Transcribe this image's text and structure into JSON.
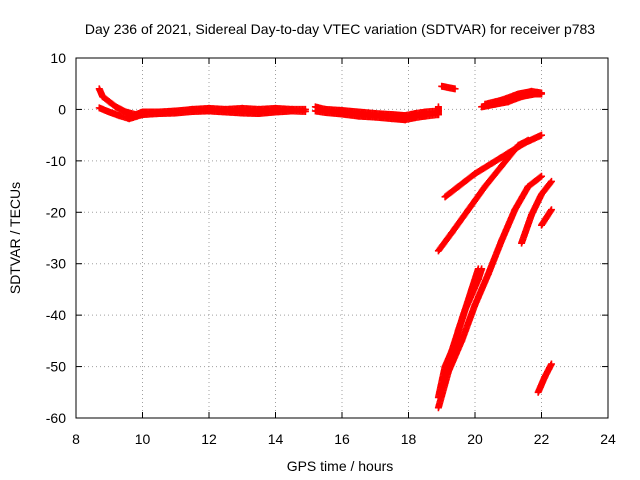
{
  "chart_data": {
    "type": "scatter",
    "title": "Day 236 of 2021, Sidereal Day-to-day VTEC variation (SDTVAR) for receiver p783",
    "xlabel": "GPS time / hours",
    "ylabel": "SDTVAR / TECUs",
    "xlim": [
      8,
      24
    ],
    "ylim": [
      -60,
      10
    ],
    "xticks": [
      8,
      10,
      12,
      14,
      16,
      18,
      20,
      22,
      24
    ],
    "yticks": [
      -60,
      -50,
      -40,
      -30,
      -20,
      -10,
      0,
      10
    ],
    "grid": true,
    "legend": "none",
    "marker": "plus",
    "color": "#ff0000",
    "series": [
      {
        "tracks": [
          [
            [
              8.7,
              4.0
            ],
            [
              8.8,
              2.5
            ],
            [
              9.0,
              1.5
            ],
            [
              9.2,
              0.5
            ],
            [
              9.5,
              -0.5
            ],
            [
              9.8,
              -1.0
            ],
            [
              10.0,
              -0.5
            ],
            [
              10.5,
              -0.5
            ],
            [
              11.0,
              -0.3
            ],
            [
              11.5,
              0.0
            ],
            [
              12.0,
              0.2
            ],
            [
              12.5,
              0.0
            ],
            [
              13.0,
              0.2
            ],
            [
              13.5,
              0.0
            ],
            [
              14.0,
              0.2
            ],
            [
              14.5,
              0.0
            ],
            [
              14.9,
              0.0
            ]
          ],
          [
            [
              8.7,
              0.3
            ],
            [
              9.0,
              -0.5
            ],
            [
              9.3,
              -1.2
            ],
            [
              9.6,
              -1.8
            ],
            [
              10.0,
              -1.0
            ],
            [
              10.5,
              -0.8
            ],
            [
              11.0,
              -0.7
            ],
            [
              11.5,
              -0.4
            ],
            [
              12.0,
              -0.3
            ],
            [
              12.5,
              -0.5
            ],
            [
              13.0,
              -0.7
            ],
            [
              13.5,
              -0.8
            ],
            [
              14.0,
              -0.5
            ],
            [
              14.5,
              -0.3
            ],
            [
              14.9,
              -0.4
            ]
          ],
          [
            [
              15.2,
              0.5
            ],
            [
              15.5,
              0.0
            ],
            [
              16.0,
              -0.2
            ],
            [
              16.5,
              -0.5
            ],
            [
              17.0,
              -0.8
            ],
            [
              17.5,
              -1.0
            ],
            [
              17.9,
              -1.2
            ],
            [
              18.2,
              -0.8
            ],
            [
              18.5,
              -0.5
            ],
            [
              18.9,
              -0.3
            ]
          ],
          [
            [
              15.2,
              -0.3
            ],
            [
              15.5,
              -0.6
            ],
            [
              16.0,
              -0.9
            ],
            [
              16.5,
              -1.3
            ],
            [
              17.0,
              -1.5
            ],
            [
              17.5,
              -1.8
            ],
            [
              17.9,
              -2.0
            ],
            [
              18.2,
              -1.6
            ],
            [
              18.5,
              -1.3
            ],
            [
              18.9,
              -1.0
            ],
            [
              18.9,
              0.5
            ]
          ],
          [
            [
              19.0,
              4.5
            ],
            [
              19.4,
              4.0
            ]
          ],
          [
            [
              20.2,
              0.5
            ],
            [
              20.6,
              1.0
            ],
            [
              21.0,
              1.5
            ],
            [
              21.4,
              2.5
            ],
            [
              21.8,
              3.0
            ],
            [
              22.0,
              3.0
            ]
          ],
          [
            [
              20.3,
              1.0
            ],
            [
              20.8,
              1.8
            ],
            [
              21.3,
              3.0
            ],
            [
              21.7,
              3.5
            ],
            [
              22.0,
              3.2
            ]
          ],
          [
            [
              19.1,
              -17.0
            ],
            [
              19.5,
              -15.0
            ],
            [
              20.0,
              -12.5
            ],
            [
              20.5,
              -10.5
            ],
            [
              21.0,
              -8.5
            ],
            [
              21.5,
              -6.5
            ],
            [
              22.0,
              -5.0
            ]
          ],
          [
            [
              18.9,
              -27.5
            ],
            [
              19.3,
              -24.0
            ],
            [
              19.8,
              -19.5
            ],
            [
              20.3,
              -15.0
            ],
            [
              20.8,
              -11.0
            ],
            [
              21.3,
              -7.0
            ],
            [
              21.6,
              -6.0
            ]
          ],
          [
            [
              18.9,
              -58.0
            ],
            [
              19.2,
              -51.0
            ],
            [
              19.6,
              -45.0
            ],
            [
              20.0,
              -38.0
            ],
            [
              20.4,
              -32.0
            ],
            [
              20.8,
              -25.5
            ],
            [
              21.2,
              -19.5
            ],
            [
              21.6,
              -15.0
            ],
            [
              22.0,
              -13.0
            ]
          ],
          [
            [
              18.9,
              -56.0
            ],
            [
              19.1,
              -50.0
            ],
            [
              19.3,
              -47.0
            ],
            [
              19.5,
              -43.0
            ],
            [
              19.7,
              -39.0
            ],
            [
              19.9,
              -35.0
            ],
            [
              20.1,
              -31.0
            ]
          ],
          [
            [
              19.3,
              -48.0
            ],
            [
              19.5,
              -43.0
            ],
            [
              19.7,
              -39.0
            ],
            [
              19.9,
              -36.0
            ],
            [
              20.1,
              -33.0
            ],
            [
              20.2,
              -31.0
            ]
          ],
          [
            [
              21.4,
              -26.0
            ],
            [
              21.7,
              -20.5
            ],
            [
              22.0,
              -16.5
            ],
            [
              22.3,
              -14.0
            ]
          ],
          [
            [
              22.0,
              -22.5
            ],
            [
              22.3,
              -19.5
            ]
          ],
          [
            [
              21.9,
              -55.0
            ],
            [
              22.1,
              -52.0
            ],
            [
              22.3,
              -49.5
            ]
          ]
        ]
      }
    ]
  }
}
